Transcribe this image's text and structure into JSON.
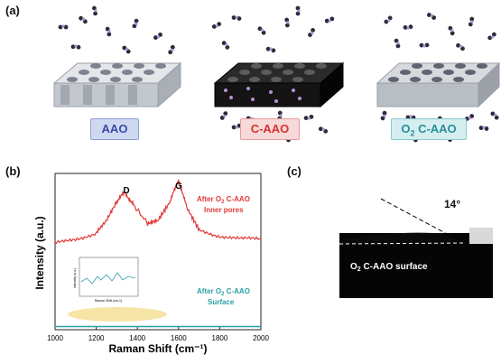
{
  "panel_a": {
    "label": "(a)",
    "tags": [
      {
        "pre": "AAO",
        "sub": "",
        "post": ""
      },
      {
        "pre": "C-AAO",
        "sub": "",
        "post": ""
      },
      {
        "pre": "O",
        "sub": "2",
        "post": " C-AAO"
      }
    ]
  },
  "panel_b": {
    "label": "(b)",
    "ylabel": "Intensity (a.u.)",
    "xlabel": "Raman Shift (cm⁻¹)",
    "peak_d": "D",
    "peak_g": "G",
    "red_note_line1_pre": "After O",
    "red_note_line1_sub": "2",
    "red_note_line1_post": " C-AAO",
    "red_note_line2": "Inner pores",
    "teal_note_line1_pre": "After O",
    "teal_note_line1_sub": "2",
    "teal_note_line1_post": " C-AAO",
    "teal_note_line2": "Surface",
    "inset_ylabel": "Intensity (a.u.)",
    "inset_xlabel": "Raman Shift (cm-1)"
  },
  "panel_c": {
    "label": "(c)",
    "angle": "14°",
    "surface_pre": "O",
    "surface_sub": "2",
    "surface_post": " C-AAO surface"
  },
  "chart_data": {
    "type": "line",
    "xlim": [
      1000,
      2000
    ],
    "xticks": [
      1000,
      1200,
      1400,
      1600,
      1800,
      2000
    ],
    "series": [
      {
        "color": "#e03a3a",
        "x": [
          1000,
          1100,
          1200,
          1250,
          1300,
          1340,
          1380,
          1450,
          1500,
          1560,
          1600,
          1640,
          1700,
          1800,
          1900,
          2000
        ],
        "y": [
          0.55,
          0.58,
          0.62,
          0.7,
          0.82,
          0.88,
          0.8,
          0.68,
          0.7,
          0.82,
          0.96,
          0.78,
          0.64,
          0.6,
          0.58,
          0.58
        ]
      },
      {
        "color": "#2a9fa6",
        "x": [
          1000,
          1500,
          2000
        ],
        "y": [
          0.02,
          0.02,
          0.02
        ]
      }
    ],
    "grid": false
  },
  "colors": {
    "aao_block": "#c9ccd2",
    "caao_block": "#1b1b1b",
    "molecule": "#2b2b3a",
    "molecule_accent": "#b58fd6",
    "red_trace": "#e03a3a",
    "teal_trace": "#2a9fa6",
    "highlight": "#f3dc8a"
  }
}
